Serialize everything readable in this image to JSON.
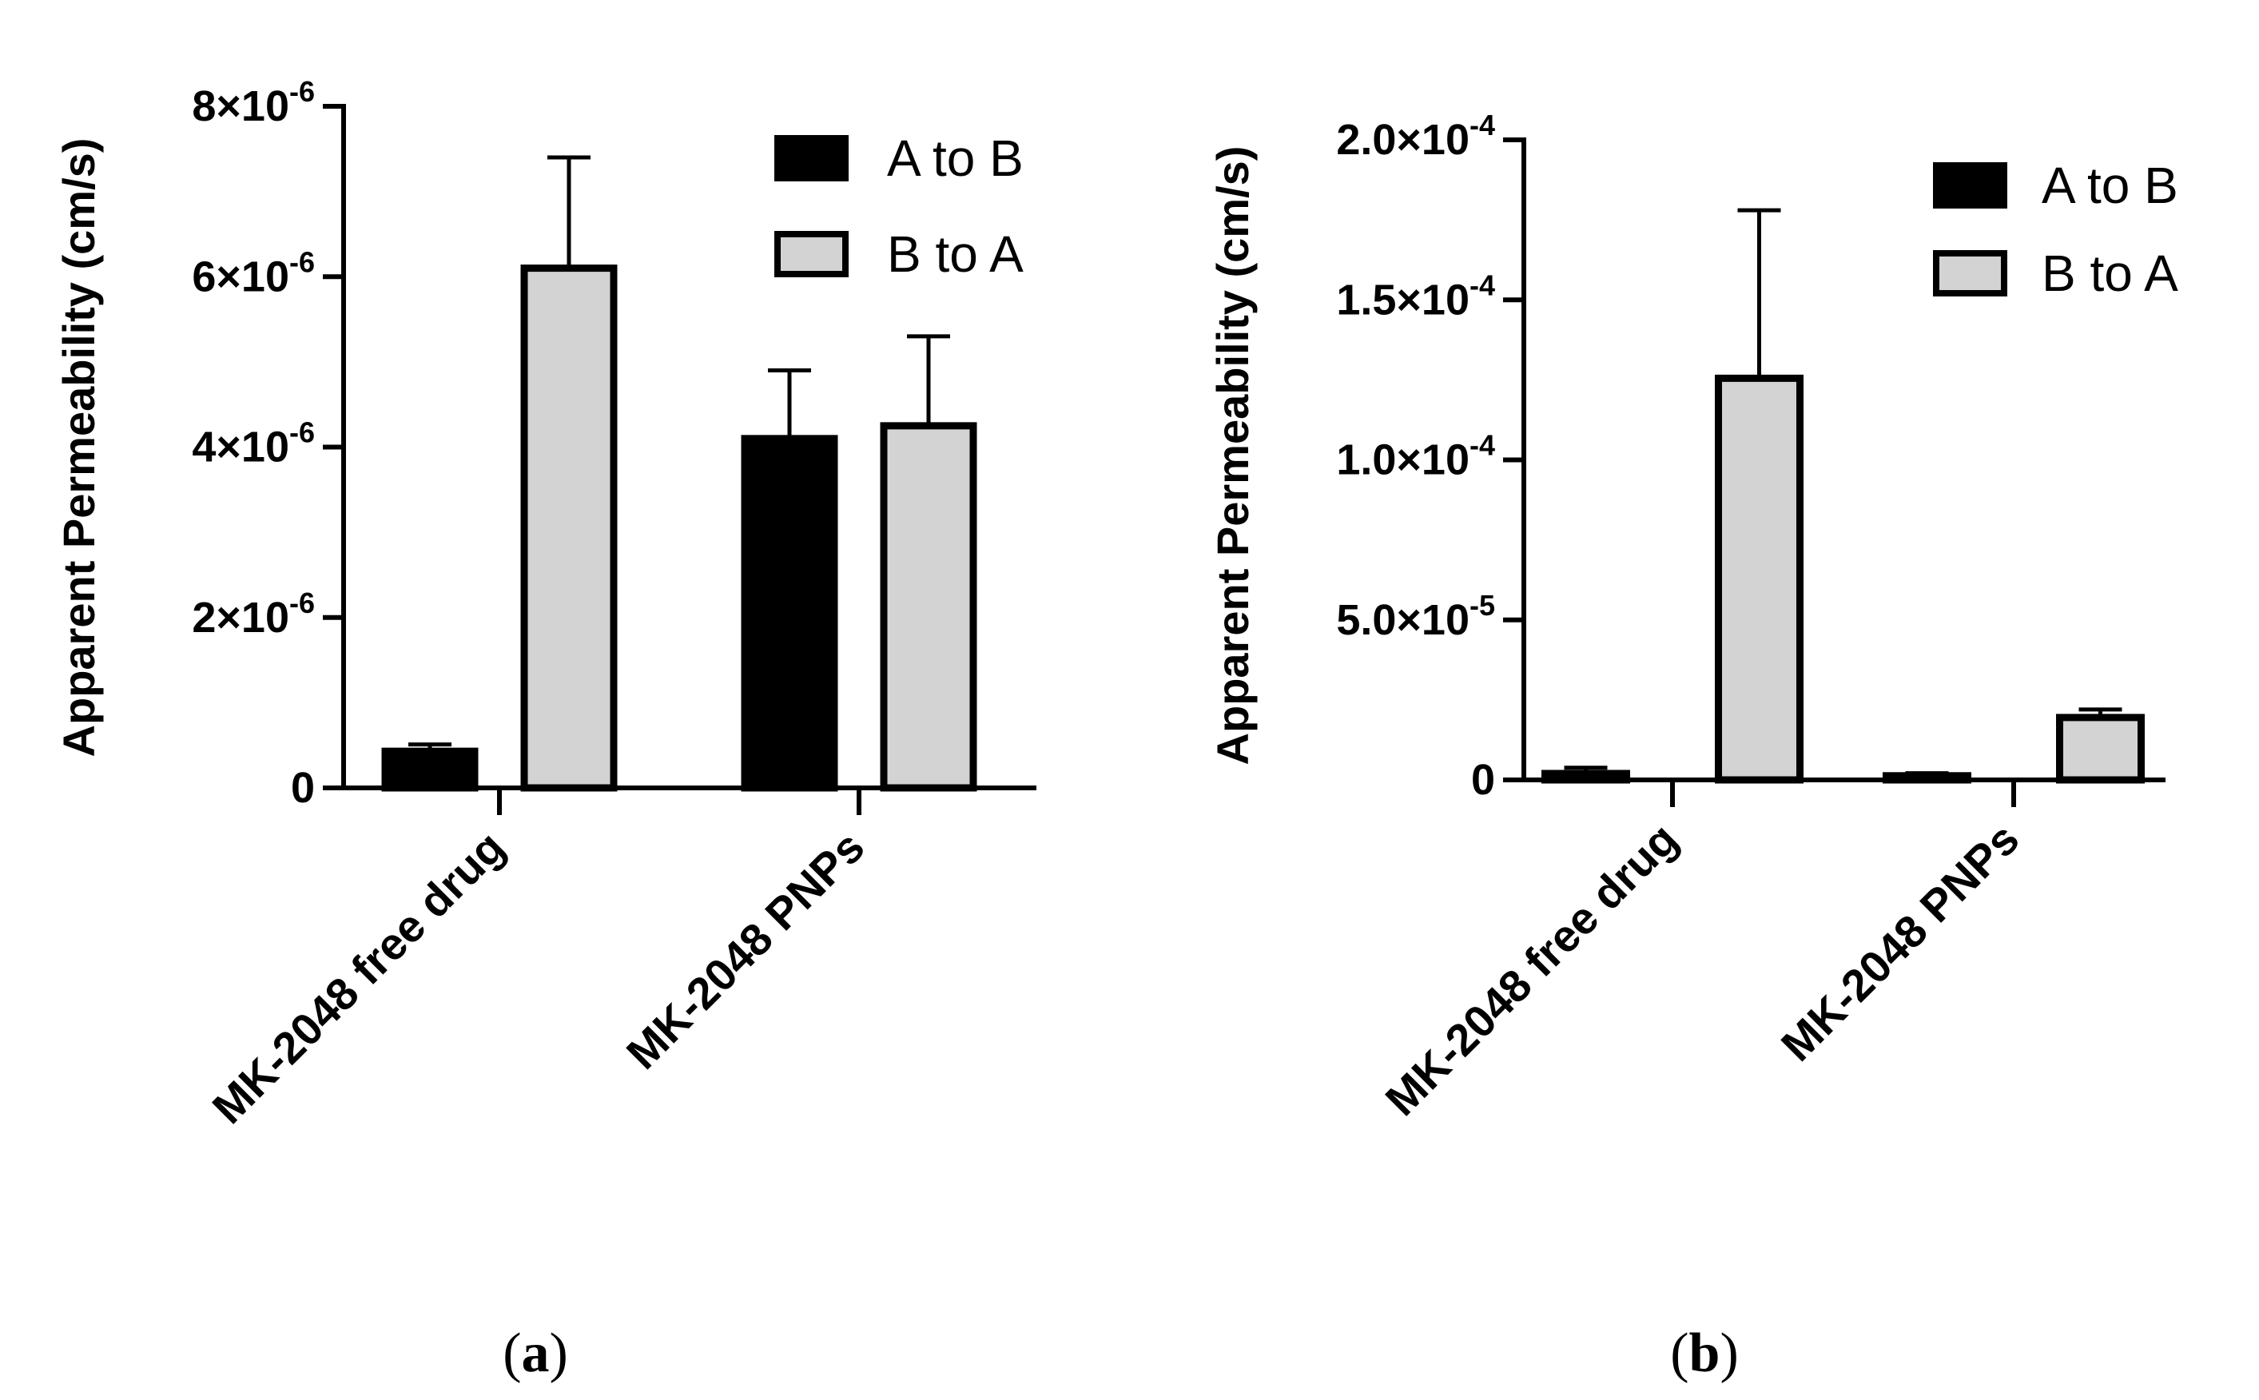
{
  "colors": {
    "a_to_b": "#000000",
    "b_to_a": "#d3d3d3",
    "axis": "#000000"
  },
  "chart_data": [
    {
      "type": "bar",
      "panel_label": "a",
      "ylabel": "Apparent Permeability  (cm/s)",
      "ylim": [
        0,
        8e-06
      ],
      "yticks": [
        {
          "value": 0,
          "mant": "0",
          "exp": ""
        },
        {
          "value": 2e-06,
          "mant": "2×10",
          "exp": "-6"
        },
        {
          "value": 4e-06,
          "mant": "4×10",
          "exp": "-6"
        },
        {
          "value": 6e-06,
          "mant": "6×10",
          "exp": "-6"
        },
        {
          "value": 8e-06,
          "mant": "8×10",
          "exp": "-6"
        }
      ],
      "categories": [
        "MK-2048 free drug",
        "MK-2048 PNPs"
      ],
      "series": [
        {
          "name": "A to B",
          "values": [
            4.3e-07,
            4.1e-06
          ],
          "errors": [
            8e-08,
            8e-07
          ]
        },
        {
          "name": "B to A",
          "values": [
            6.1e-06,
            4.25e-06
          ],
          "errors": [
            1.3e-06,
            1.05e-06
          ]
        }
      ],
      "legend_position": "top-right",
      "grid": false
    },
    {
      "type": "bar",
      "panel_label": "b",
      "ylabel": "Apparent Permeability  (cm/s)",
      "ylim": [
        0,
        0.0002
      ],
      "yticks": [
        {
          "value": 0,
          "mant": "0",
          "exp": ""
        },
        {
          "value": 5e-05,
          "mant": "5.0×10",
          "exp": "-5"
        },
        {
          "value": 0.0001,
          "mant": "1.0×10",
          "exp": "-4"
        },
        {
          "value": 0.00015,
          "mant": "1.5×10",
          "exp": "-4"
        },
        {
          "value": 0.0002,
          "mant": "2.0×10",
          "exp": "-4"
        }
      ],
      "categories": [
        "MK-2048 free drug",
        "MK-2048 PNPs"
      ],
      "series": [
        {
          "name": "A to B",
          "values": [
            2e-06,
            1.3e-06
          ],
          "errors": [
            1.8e-06,
            8e-07
          ]
        },
        {
          "name": "B to A",
          "values": [
            0.0001255,
            1.95e-05
          ],
          "errors": [
            5.25e-05,
            2.5e-06
          ]
        }
      ],
      "legend_position": "top-right",
      "grid": false
    }
  ]
}
